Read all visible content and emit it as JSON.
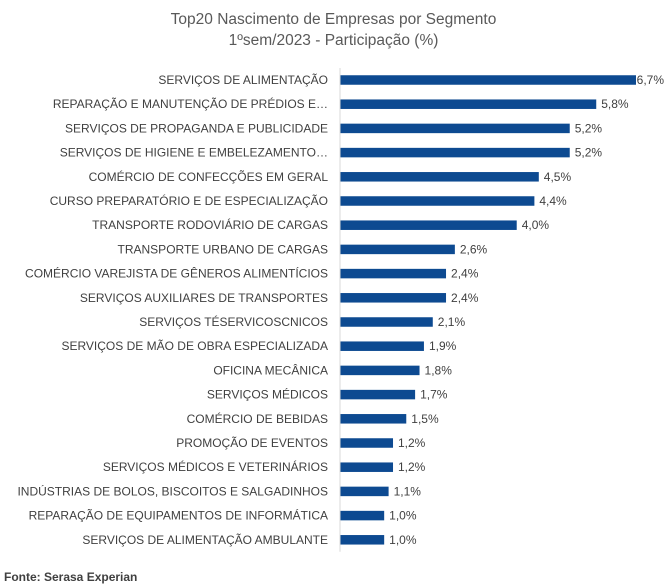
{
  "chart_data": {
    "type": "bar",
    "orientation": "horizontal",
    "title": "Top20 Nascimento de Empresas por Segmento",
    "subtitle": "1ºsem/2023 - Participação (%)",
    "categories": [
      "SERVIÇOS DE ALIMENTAÇÃO",
      "REPARAÇÃO E MANUTENÇÃO DE PRÉDIOS E…",
      "SERVIÇOS DE PROPAGANDA E PUBLICIDADE",
      "SERVIÇOS DE HIGIENE E EMBELEZAMENTO…",
      "COMÉRCIO DE CONFECÇÕES EM GERAL",
      "CURSO PREPARATÓRIO E DE ESPECIALIZAÇÃO",
      "TRANSPORTE RODOVIÁRIO DE CARGAS",
      "TRANSPORTE URBANO DE CARGAS",
      "COMÉRCIO VAREJISTA DE GÊNEROS ALIMENTÍCIOS",
      "SERVIÇOS AUXILIARES DE TRANSPORTES",
      "SERVIÇOS TÉSERVICOSCNICOS",
      "SERVIÇOS DE MÃO DE OBRA ESPECIALIZADA",
      "OFICINA MECÂNICA",
      "SERVIÇOS MÉDICOS",
      "COMÉRCIO DE BEBIDAS",
      "PROMOÇÃO DE EVENTOS",
      "SERVIÇOS MÉDICOS E VETERINÁRIOS",
      "INDÚSTRIAS DE BOLOS, BISCOITOS E SALGADINHOS",
      "REPARAÇÃO DE EQUIPAMENTOS DE INFORMÁTICA",
      "SERVIÇOS DE ALIMENTAÇÃO AMBULANTE"
    ],
    "values": [
      6.7,
      5.8,
      5.2,
      5.2,
      4.5,
      4.4,
      4.0,
      2.6,
      2.4,
      2.4,
      2.1,
      1.9,
      1.8,
      1.7,
      1.5,
      1.2,
      1.2,
      1.1,
      1.0,
      1.0
    ],
    "data_labels": [
      "6,7%",
      "5,8%",
      "5,2%",
      "5,2%",
      "4,5%",
      "4,4%",
      "4,0%",
      "2,6%",
      "2,4%",
      "2,4%",
      "2,1%",
      "1,9%",
      "1,8%",
      "1,7%",
      "1,5%",
      "1,2%",
      "1,2%",
      "1,1%",
      "1,0%",
      "1,0%"
    ],
    "xlim": [
      0,
      6.7
    ],
    "bar_color": "#0d4a91",
    "grid": false,
    "legend": "none"
  },
  "source": "Fonte: Serasa Experian"
}
